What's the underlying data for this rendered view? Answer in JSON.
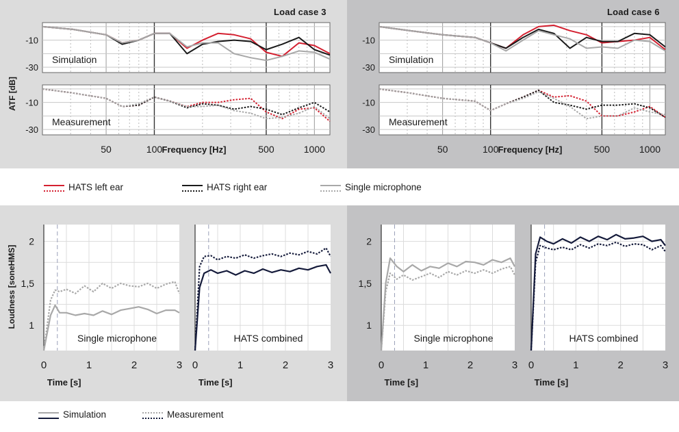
{
  "colors": {
    "left_ear": "#d42030",
    "right_ear": "#1a1a1a",
    "single_mic": "#a8a8a8",
    "loud_single": "#a8a8a8",
    "loud_hats": "#141a3a"
  },
  "top": {
    "ylabel": "ATF [dB]",
    "xlabel": "Frequency [Hz]",
    "x_ticks": [
      "50",
      "100",
      "500",
      "1000"
    ],
    "y_ticks": [
      "-10",
      "-30"
    ],
    "sub_labels": {
      "sim": "Simulation",
      "meas": "Measurement"
    }
  },
  "bottom": {
    "ylabel": "Loudness [soneHMS]",
    "xlabel": "Time [s]",
    "x_ticks": [
      "0",
      "1",
      "2",
      "3"
    ],
    "y_ticks": [
      "2",
      "1,5",
      "1"
    ],
    "sub_labels": {
      "single": "Single microphone",
      "hats": "HATS combined"
    }
  },
  "legend_top": {
    "left": "HATS left ear",
    "right": "HATS right ear",
    "single": "Single microphone"
  },
  "legend_bottom": {
    "sim": "Simulation",
    "meas": "Measurement"
  },
  "chart_data": [
    {
      "type": "line",
      "title": "Load case 3",
      "subtitle": "Simulation",
      "xlabel": "Frequency [Hz]",
      "ylabel": "ATF [dB]",
      "x_scale": "log",
      "xlim": [
        20,
        1250
      ],
      "ylim": [
        -34,
        3
      ],
      "x": [
        20,
        31,
        50,
        63,
        80,
        100,
        125,
        160,
        200,
        250,
        315,
        400,
        500,
        630,
        800,
        1000,
        1250
      ],
      "series": [
        {
          "name": "HATS left ear",
          "style": "solid",
          "values": [
            0,
            -2,
            -6,
            -12,
            -10,
            -5,
            -5,
            -16,
            -10,
            -5,
            -6,
            -9,
            -19,
            -22,
            -12,
            -14,
            -20
          ]
        },
        {
          "name": "HATS right ear",
          "style": "solid",
          "values": [
            0,
            -2,
            -6,
            -13,
            -10,
            -5,
            -5,
            -20,
            -13,
            -11,
            -10,
            -11,
            -17,
            -13,
            -8,
            -17,
            -21
          ]
        },
        {
          "name": "Single microphone",
          "style": "solid",
          "values": [
            0,
            -2,
            -6,
            -12,
            -10,
            -5,
            -5,
            -15,
            -12,
            -12,
            -20,
            -23,
            -25,
            -22,
            -18,
            -19,
            -24
          ]
        }
      ]
    },
    {
      "type": "line",
      "title": "Load case 3",
      "subtitle": "Measurement",
      "xlabel": "Frequency [Hz]",
      "ylabel": "ATF [dB]",
      "x_scale": "log",
      "xlim": [
        20,
        1250
      ],
      "ylim": [
        -34,
        3
      ],
      "x": [
        20,
        31,
        50,
        63,
        80,
        100,
        125,
        160,
        200,
        250,
        315,
        400,
        500,
        630,
        800,
        1000,
        1250
      ],
      "series": [
        {
          "name": "HATS left ear",
          "style": "dotted",
          "values": [
            0,
            -3,
            -7,
            -13,
            -12,
            -6,
            -9,
            -13,
            -10,
            -10,
            -8,
            -7,
            -17,
            -22,
            -15,
            -14,
            -24
          ]
        },
        {
          "name": "HATS right ear",
          "style": "dotted",
          "values": [
            0,
            -3,
            -7,
            -13,
            -12,
            -6,
            -9,
            -14,
            -11,
            -12,
            -15,
            -13,
            -15,
            -19,
            -14,
            -10,
            -17
          ]
        },
        {
          "name": "Single microphone",
          "style": "dotted",
          "values": [
            0,
            -3,
            -7,
            -13,
            -11,
            -6,
            -9,
            -13,
            -13,
            -12,
            -16,
            -18,
            -22,
            -21,
            -18,
            -13,
            -22
          ]
        }
      ]
    },
    {
      "type": "line",
      "title": "Load case 6",
      "subtitle": "Simulation",
      "xlabel": "Frequency [Hz]",
      "ylabel": "ATF [dB]",
      "x_scale": "log",
      "xlim": [
        20,
        1250
      ],
      "ylim": [
        -34,
        3
      ],
      "x": [
        20,
        31,
        50,
        63,
        80,
        100,
        125,
        160,
        200,
        250,
        315,
        400,
        500,
        630,
        800,
        1000,
        1250
      ],
      "series": [
        {
          "name": "HATS left ear",
          "style": "solid",
          "values": [
            0,
            -3,
            -6,
            -7,
            -8,
            -12,
            -16,
            -6,
            0,
            1,
            -3,
            -6,
            -12,
            -11,
            -10,
            -8,
            -17
          ]
        },
        {
          "name": "HATS right ear",
          "style": "solid",
          "values": [
            0,
            -3,
            -6,
            -7,
            -8,
            -12,
            -16,
            -8,
            -2,
            -5,
            -16,
            -8,
            -11,
            -11,
            -5,
            -6,
            -15
          ]
        },
        {
          "name": "Single microphone",
          "style": "solid",
          "values": [
            0,
            -3,
            -6,
            -7,
            -8,
            -12,
            -18,
            -10,
            -3,
            -6,
            -9,
            -16,
            -15,
            -16,
            -10,
            -11,
            -18
          ]
        }
      ]
    },
    {
      "type": "line",
      "title": "Load case 6",
      "subtitle": "Measurement",
      "xlabel": "Frequency [Hz]",
      "ylabel": "ATF [dB]",
      "x_scale": "log",
      "xlim": [
        20,
        1250
      ],
      "ylim": [
        -34,
        3
      ],
      "x": [
        20,
        31,
        50,
        63,
        80,
        100,
        125,
        160,
        200,
        250,
        315,
        400,
        500,
        630,
        800,
        1000,
        1250
      ],
      "series": [
        {
          "name": "HATS left ear",
          "style": "dotted",
          "values": [
            0,
            -3,
            -7,
            -8,
            -9,
            -16,
            -11,
            -6,
            -1,
            -6,
            -5,
            -9,
            -20,
            -20,
            -17,
            -13,
            -21
          ]
        },
        {
          "name": "HATS right ear",
          "style": "dotted",
          "values": [
            0,
            -3,
            -7,
            -8,
            -9,
            -16,
            -11,
            -6,
            -1,
            -10,
            -12,
            -15,
            -12,
            -12,
            -11,
            -14,
            -21
          ]
        },
        {
          "name": "Single microphone",
          "style": "dotted",
          "values": [
            0,
            -3,
            -7,
            -8,
            -9,
            -16,
            -11,
            -7,
            -2,
            -7,
            -13,
            -22,
            -20,
            -20,
            -14,
            -17,
            -19
          ]
        }
      ]
    },
    {
      "type": "line",
      "title": "Load case 3",
      "subtitle": "Single microphone",
      "xlabel": "Time [s]",
      "ylabel": "Loudness [soneHMS]",
      "xlim": [
        0,
        3
      ],
      "ylim": [
        0.7,
        2.2
      ],
      "x": [
        0,
        0.15,
        0.25,
        0.35,
        0.5,
        0.7,
        0.9,
        1.1,
        1.3,
        1.5,
        1.7,
        1.9,
        2.1,
        2.3,
        2.5,
        2.7,
        2.9,
        3
      ],
      "series": [
        {
          "name": "Simulation",
          "style": "solid",
          "values": [
            0.7,
            1.12,
            1.24,
            1.15,
            1.15,
            1.12,
            1.14,
            1.12,
            1.17,
            1.13,
            1.18,
            1.2,
            1.22,
            1.19,
            1.14,
            1.18,
            1.18,
            1.15
          ]
        },
        {
          "name": "Measurement",
          "style": "dotted",
          "values": [
            0.7,
            1.3,
            1.42,
            1.4,
            1.43,
            1.38,
            1.47,
            1.4,
            1.5,
            1.44,
            1.5,
            1.47,
            1.46,
            1.5,
            1.44,
            1.49,
            1.52,
            1.38
          ]
        }
      ]
    },
    {
      "type": "line",
      "title": "Load case 3",
      "subtitle": "HATS combined",
      "xlabel": "Time [s]",
      "ylabel": "Loudness [soneHMS]",
      "xlim": [
        0,
        3
      ],
      "ylim": [
        0.7,
        2.2
      ],
      "x": [
        0,
        0.1,
        0.2,
        0.35,
        0.5,
        0.7,
        0.9,
        1.1,
        1.3,
        1.5,
        1.7,
        1.9,
        2.1,
        2.3,
        2.5,
        2.7,
        2.9,
        3
      ],
      "series": [
        {
          "name": "Simulation",
          "style": "solid",
          "values": [
            0.7,
            1.45,
            1.62,
            1.66,
            1.62,
            1.65,
            1.6,
            1.65,
            1.62,
            1.67,
            1.63,
            1.66,
            1.64,
            1.68,
            1.66,
            1.7,
            1.72,
            1.62
          ]
        },
        {
          "name": "Measurement",
          "style": "dotted",
          "values": [
            0.7,
            1.7,
            1.82,
            1.83,
            1.78,
            1.82,
            1.8,
            1.84,
            1.8,
            1.83,
            1.85,
            1.82,
            1.86,
            1.84,
            1.88,
            1.85,
            1.92,
            1.82
          ]
        }
      ]
    },
    {
      "type": "line",
      "title": "Load case 6",
      "subtitle": "Single microphone",
      "xlabel": "Time [s]",
      "ylabel": "Loudness [soneHMS]",
      "xlim": [
        0,
        3
      ],
      "ylim": [
        0.7,
        2.2
      ],
      "x": [
        0,
        0.1,
        0.2,
        0.35,
        0.5,
        0.7,
        0.9,
        1.1,
        1.3,
        1.5,
        1.7,
        1.9,
        2.1,
        2.3,
        2.5,
        2.7,
        2.9,
        3
      ],
      "series": [
        {
          "name": "Simulation",
          "style": "solid",
          "values": [
            0.7,
            1.5,
            1.8,
            1.7,
            1.64,
            1.72,
            1.65,
            1.7,
            1.68,
            1.74,
            1.7,
            1.76,
            1.75,
            1.72,
            1.78,
            1.75,
            1.8,
            1.7
          ]
        },
        {
          "name": "Measurement",
          "style": "dotted",
          "values": [
            0.7,
            1.4,
            1.62,
            1.55,
            1.6,
            1.54,
            1.58,
            1.62,
            1.57,
            1.64,
            1.6,
            1.65,
            1.62,
            1.66,
            1.62,
            1.67,
            1.7,
            1.6
          ]
        }
      ]
    },
    {
      "type": "line",
      "title": "Load case 6",
      "subtitle": "HATS combined",
      "xlabel": "Time [s]",
      "ylabel": "Loudness [soneHMS]",
      "xlim": [
        0,
        3
      ],
      "ylim": [
        0.7,
        2.2
      ],
      "x": [
        0,
        0.1,
        0.2,
        0.35,
        0.5,
        0.7,
        0.9,
        1.1,
        1.3,
        1.5,
        1.7,
        1.9,
        2.1,
        2.3,
        2.5,
        2.7,
        2.9,
        3
      ],
      "series": [
        {
          "name": "Simulation",
          "style": "solid",
          "values": [
            0.7,
            1.85,
            2.05,
            2.0,
            1.97,
            2.03,
            1.98,
            2.05,
            2.0,
            2.06,
            2.02,
            2.08,
            2.03,
            2.04,
            2.06,
            2.0,
            2.02,
            1.95
          ]
        },
        {
          "name": "Measurement",
          "style": "dotted",
          "values": [
            0.7,
            1.75,
            1.95,
            1.92,
            1.9,
            1.93,
            1.9,
            1.96,
            1.92,
            1.97,
            1.95,
            1.99,
            1.94,
            1.97,
            1.96,
            1.9,
            1.95,
            1.88
          ]
        }
      ]
    }
  ]
}
